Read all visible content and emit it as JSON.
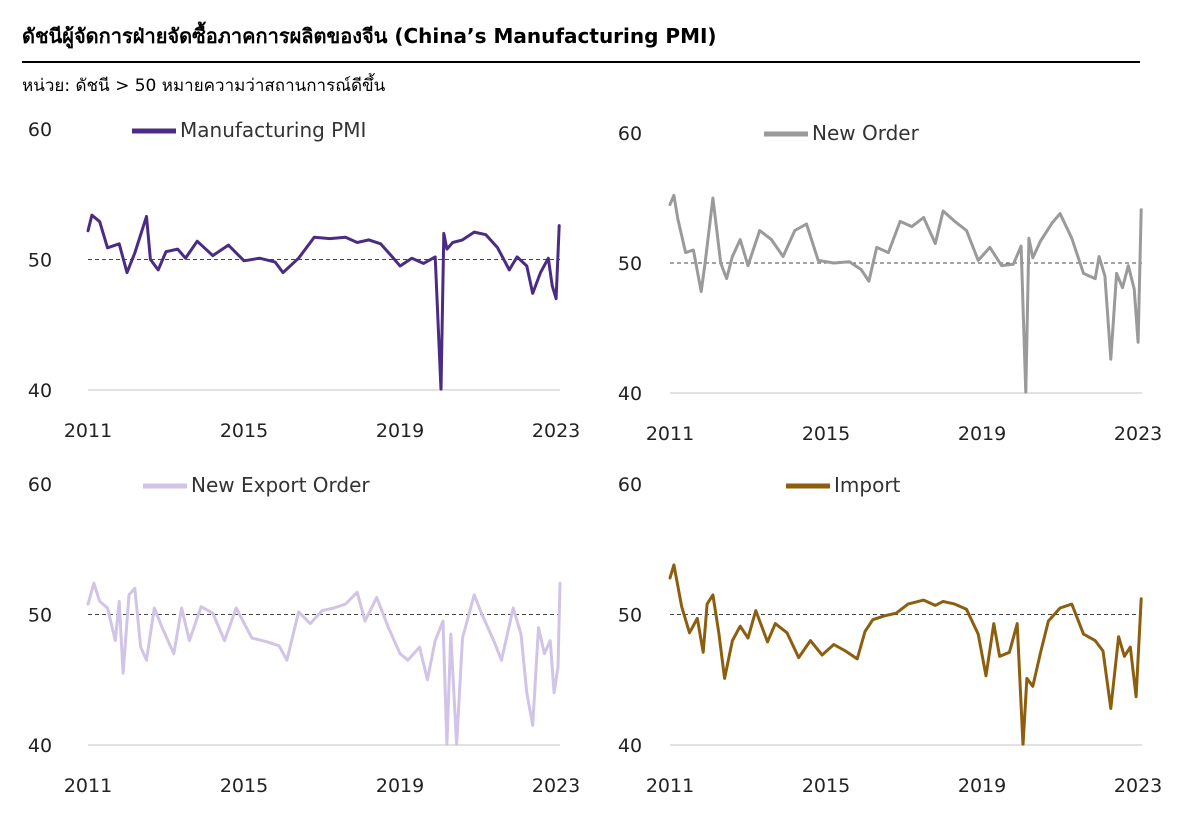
{
  "title": "ดัชนีผู้จัดการฝ่ายจัดซื้อภาคการผลิตของจีน (China’s Manufacturing PMI)",
  "unit_note": "หน่วย: ดัชนี > 50 หมายความว่าสถานการณ์ดีขึ้น",
  "chart_data": [
    {
      "type": "line",
      "title": "Manufacturing PMI",
      "legend": "Manufacturing PMI",
      "color": "#4b2c84",
      "xlabel": "",
      "ylabel": "",
      "xlim": [
        2011,
        2023.1
      ],
      "ylim": [
        40,
        60
      ],
      "yticks": [
        40,
        50,
        60
      ],
      "xticks": [
        2011,
        2015,
        2019,
        2023
      ],
      "reference_line": 50,
      "x": [
        2011.0,
        2011.1,
        2011.3,
        2011.5,
        2011.8,
        2012.0,
        2012.2,
        2012.5,
        2012.6,
        2012.8,
        2013.0,
        2013.3,
        2013.5,
        2013.8,
        2014.2,
        2014.6,
        2015.0,
        2015.4,
        2015.8,
        2016.0,
        2016.4,
        2016.8,
        2017.2,
        2017.6,
        2017.9,
        2018.2,
        2018.5,
        2018.8,
        2019.0,
        2019.3,
        2019.6,
        2019.9,
        2020.05,
        2020.12,
        2020.2,
        2020.35,
        2020.6,
        2020.9,
        2021.2,
        2021.5,
        2021.8,
        2022.0,
        2022.25,
        2022.4,
        2022.6,
        2022.8,
        2022.9,
        2023.0,
        2023.08
      ],
      "values": [
        52.2,
        53.4,
        52.9,
        50.9,
        51.2,
        49.0,
        50.5,
        53.3,
        50.0,
        49.2,
        50.6,
        50.8,
        50.1,
        51.4,
        50.3,
        51.1,
        49.9,
        50.1,
        49.8,
        49.0,
        50.1,
        51.7,
        51.6,
        51.7,
        51.3,
        51.5,
        51.2,
        50.2,
        49.5,
        50.1,
        49.7,
        50.2,
        40.0,
        52.0,
        50.8,
        51.3,
        51.5,
        52.1,
        51.9,
        50.9,
        49.2,
        50.2,
        49.5,
        47.4,
        49.0,
        50.1,
        48.0,
        47.0,
        52.6
      ]
    },
    {
      "type": "line",
      "title": "New Order",
      "legend": "New Order",
      "color": "#9a9a9a",
      "xlabel": "",
      "ylabel": "",
      "xlim": [
        2011,
        2023.1
      ],
      "ylim": [
        40,
        60
      ],
      "yticks": [
        40,
        50,
        60
      ],
      "xticks": [
        2011,
        2015,
        2019,
        2023
      ],
      "reference_line": 50,
      "x": [
        2011.0,
        2011.1,
        2011.2,
        2011.4,
        2011.6,
        2011.8,
        2011.9,
        2012.1,
        2012.3,
        2012.45,
        2012.6,
        2012.8,
        2013.0,
        2013.3,
        2013.6,
        2013.9,
        2014.2,
        2014.5,
        2014.8,
        2015.2,
        2015.6,
        2015.9,
        2016.1,
        2016.3,
        2016.6,
        2016.9,
        2017.2,
        2017.5,
        2017.8,
        2018.0,
        2018.3,
        2018.6,
        2018.9,
        2019.2,
        2019.5,
        2019.8,
        2020.0,
        2020.12,
        2020.2,
        2020.3,
        2020.5,
        2020.8,
        2021.0,
        2021.3,
        2021.6,
        2021.9,
        2022.0,
        2022.15,
        2022.3,
        2022.45,
        2022.6,
        2022.75,
        2022.9,
        2023.0,
        2023.08
      ],
      "values": [
        54.5,
        55.2,
        53.4,
        50.8,
        51.0,
        47.8,
        50.0,
        55.0,
        50.0,
        48.8,
        50.5,
        51.8,
        49.8,
        52.5,
        51.8,
        50.5,
        52.5,
        53.0,
        50.2,
        50.0,
        50.1,
        49.5,
        48.6,
        51.2,
        50.8,
        53.2,
        52.8,
        53.5,
        51.5,
        54.0,
        53.2,
        52.5,
        50.2,
        51.2,
        49.8,
        49.9,
        51.3,
        40.0,
        51.9,
        50.4,
        51.7,
        53.1,
        53.8,
        51.9,
        49.2,
        48.8,
        50.5,
        49.0,
        42.6,
        49.2,
        48.1,
        49.8,
        48.0,
        43.9,
        54.1
      ]
    },
    {
      "type": "line",
      "title": "New Export Order",
      "legend": "New Export Order",
      "color": "#d1c4e6",
      "xlabel": "",
      "ylabel": "",
      "xlim": [
        2011,
        2023.1
      ],
      "ylim": [
        40,
        60
      ],
      "yticks": [
        40,
        50,
        60
      ],
      "xticks": [
        2011,
        2015,
        2019,
        2023
      ],
      "reference_line": 50,
      "x": [
        2011.0,
        2011.15,
        2011.3,
        2011.5,
        2011.7,
        2011.8,
        2011.9,
        2012.05,
        2012.2,
        2012.35,
        2012.5,
        2012.7,
        2012.9,
        2013.2,
        2013.4,
        2013.6,
        2013.9,
        2014.2,
        2014.5,
        2014.8,
        2015.2,
        2015.6,
        2015.9,
        2016.1,
        2016.4,
        2016.7,
        2017.0,
        2017.3,
        2017.6,
        2017.9,
        2018.1,
        2018.4,
        2018.7,
        2019.0,
        2019.2,
        2019.5,
        2019.7,
        2019.9,
        2020.1,
        2020.2,
        2020.3,
        2020.45,
        2020.6,
        2020.9,
        2021.1,
        2021.4,
        2021.6,
        2021.9,
        2022.1,
        2022.25,
        2022.4,
        2022.55,
        2022.7,
        2022.85,
        2022.95,
        2023.05,
        2023.1
      ],
      "values": [
        50.8,
        52.4,
        51.0,
        50.5,
        48.0,
        51.0,
        45.5,
        51.5,
        52.0,
        47.5,
        46.5,
        50.5,
        49.0,
        47.0,
        50.5,
        48.0,
        50.6,
        50.1,
        48.0,
        50.5,
        48.2,
        47.9,
        47.6,
        46.5,
        50.2,
        49.3,
        50.3,
        50.5,
        50.8,
        51.7,
        49.5,
        51.3,
        49.0,
        47.0,
        46.5,
        47.5,
        45.0,
        48.0,
        49.5,
        40.0,
        48.5,
        40.0,
        48.2,
        51.5,
        50.0,
        48.0,
        46.5,
        50.5,
        48.5,
        44.0,
        41.5,
        49.0,
        47.0,
        48.0,
        44.0,
        46.0,
        52.4
      ]
    },
    {
      "type": "line",
      "title": "Import",
      "legend": "Import",
      "color": "#8c5f0f",
      "xlabel": "",
      "ylabel": "",
      "xlim": [
        2011,
        2023.1
      ],
      "ylim": [
        40,
        60
      ],
      "yticks": [
        40,
        50,
        60
      ],
      "xticks": [
        2011,
        2015,
        2019,
        2023
      ],
      "reference_line": 50,
      "x": [
        2011.0,
        2011.1,
        2011.3,
        2011.5,
        2011.7,
        2011.85,
        2011.95,
        2012.1,
        2012.25,
        2012.4,
        2012.6,
        2012.8,
        2013.0,
        2013.2,
        2013.5,
        2013.7,
        2014.0,
        2014.3,
        2014.6,
        2014.9,
        2015.2,
        2015.5,
        2015.8,
        2016.0,
        2016.2,
        2016.5,
        2016.8,
        2017.1,
        2017.5,
        2017.8,
        2018.0,
        2018.3,
        2018.6,
        2018.9,
        2019.1,
        2019.3,
        2019.45,
        2019.7,
        2019.9,
        2020.05,
        2020.15,
        2020.3,
        2020.5,
        2020.7,
        2021.0,
        2021.3,
        2021.6,
        2021.9,
        2022.1,
        2022.3,
        2022.5,
        2022.65,
        2022.8,
        2022.95,
        2023.08
      ],
      "values": [
        52.8,
        53.8,
        50.6,
        48.6,
        49.7,
        47.1,
        50.8,
        51.5,
        48.6,
        45.1,
        48.0,
        49.1,
        48.2,
        50.3,
        47.9,
        49.3,
        48.6,
        46.7,
        48.0,
        46.9,
        47.7,
        47.2,
        46.6,
        48.7,
        49.6,
        49.9,
        50.1,
        50.8,
        51.1,
        50.7,
        51.0,
        50.8,
        50.4,
        48.5,
        45.3,
        49.3,
        46.8,
        47.1,
        49.3,
        40.0,
        45.1,
        44.5,
        47.1,
        49.5,
        50.5,
        50.8,
        48.5,
        48.0,
        47.2,
        42.8,
        48.3,
        46.8,
        47.5,
        43.7,
        51.2
      ]
    }
  ]
}
